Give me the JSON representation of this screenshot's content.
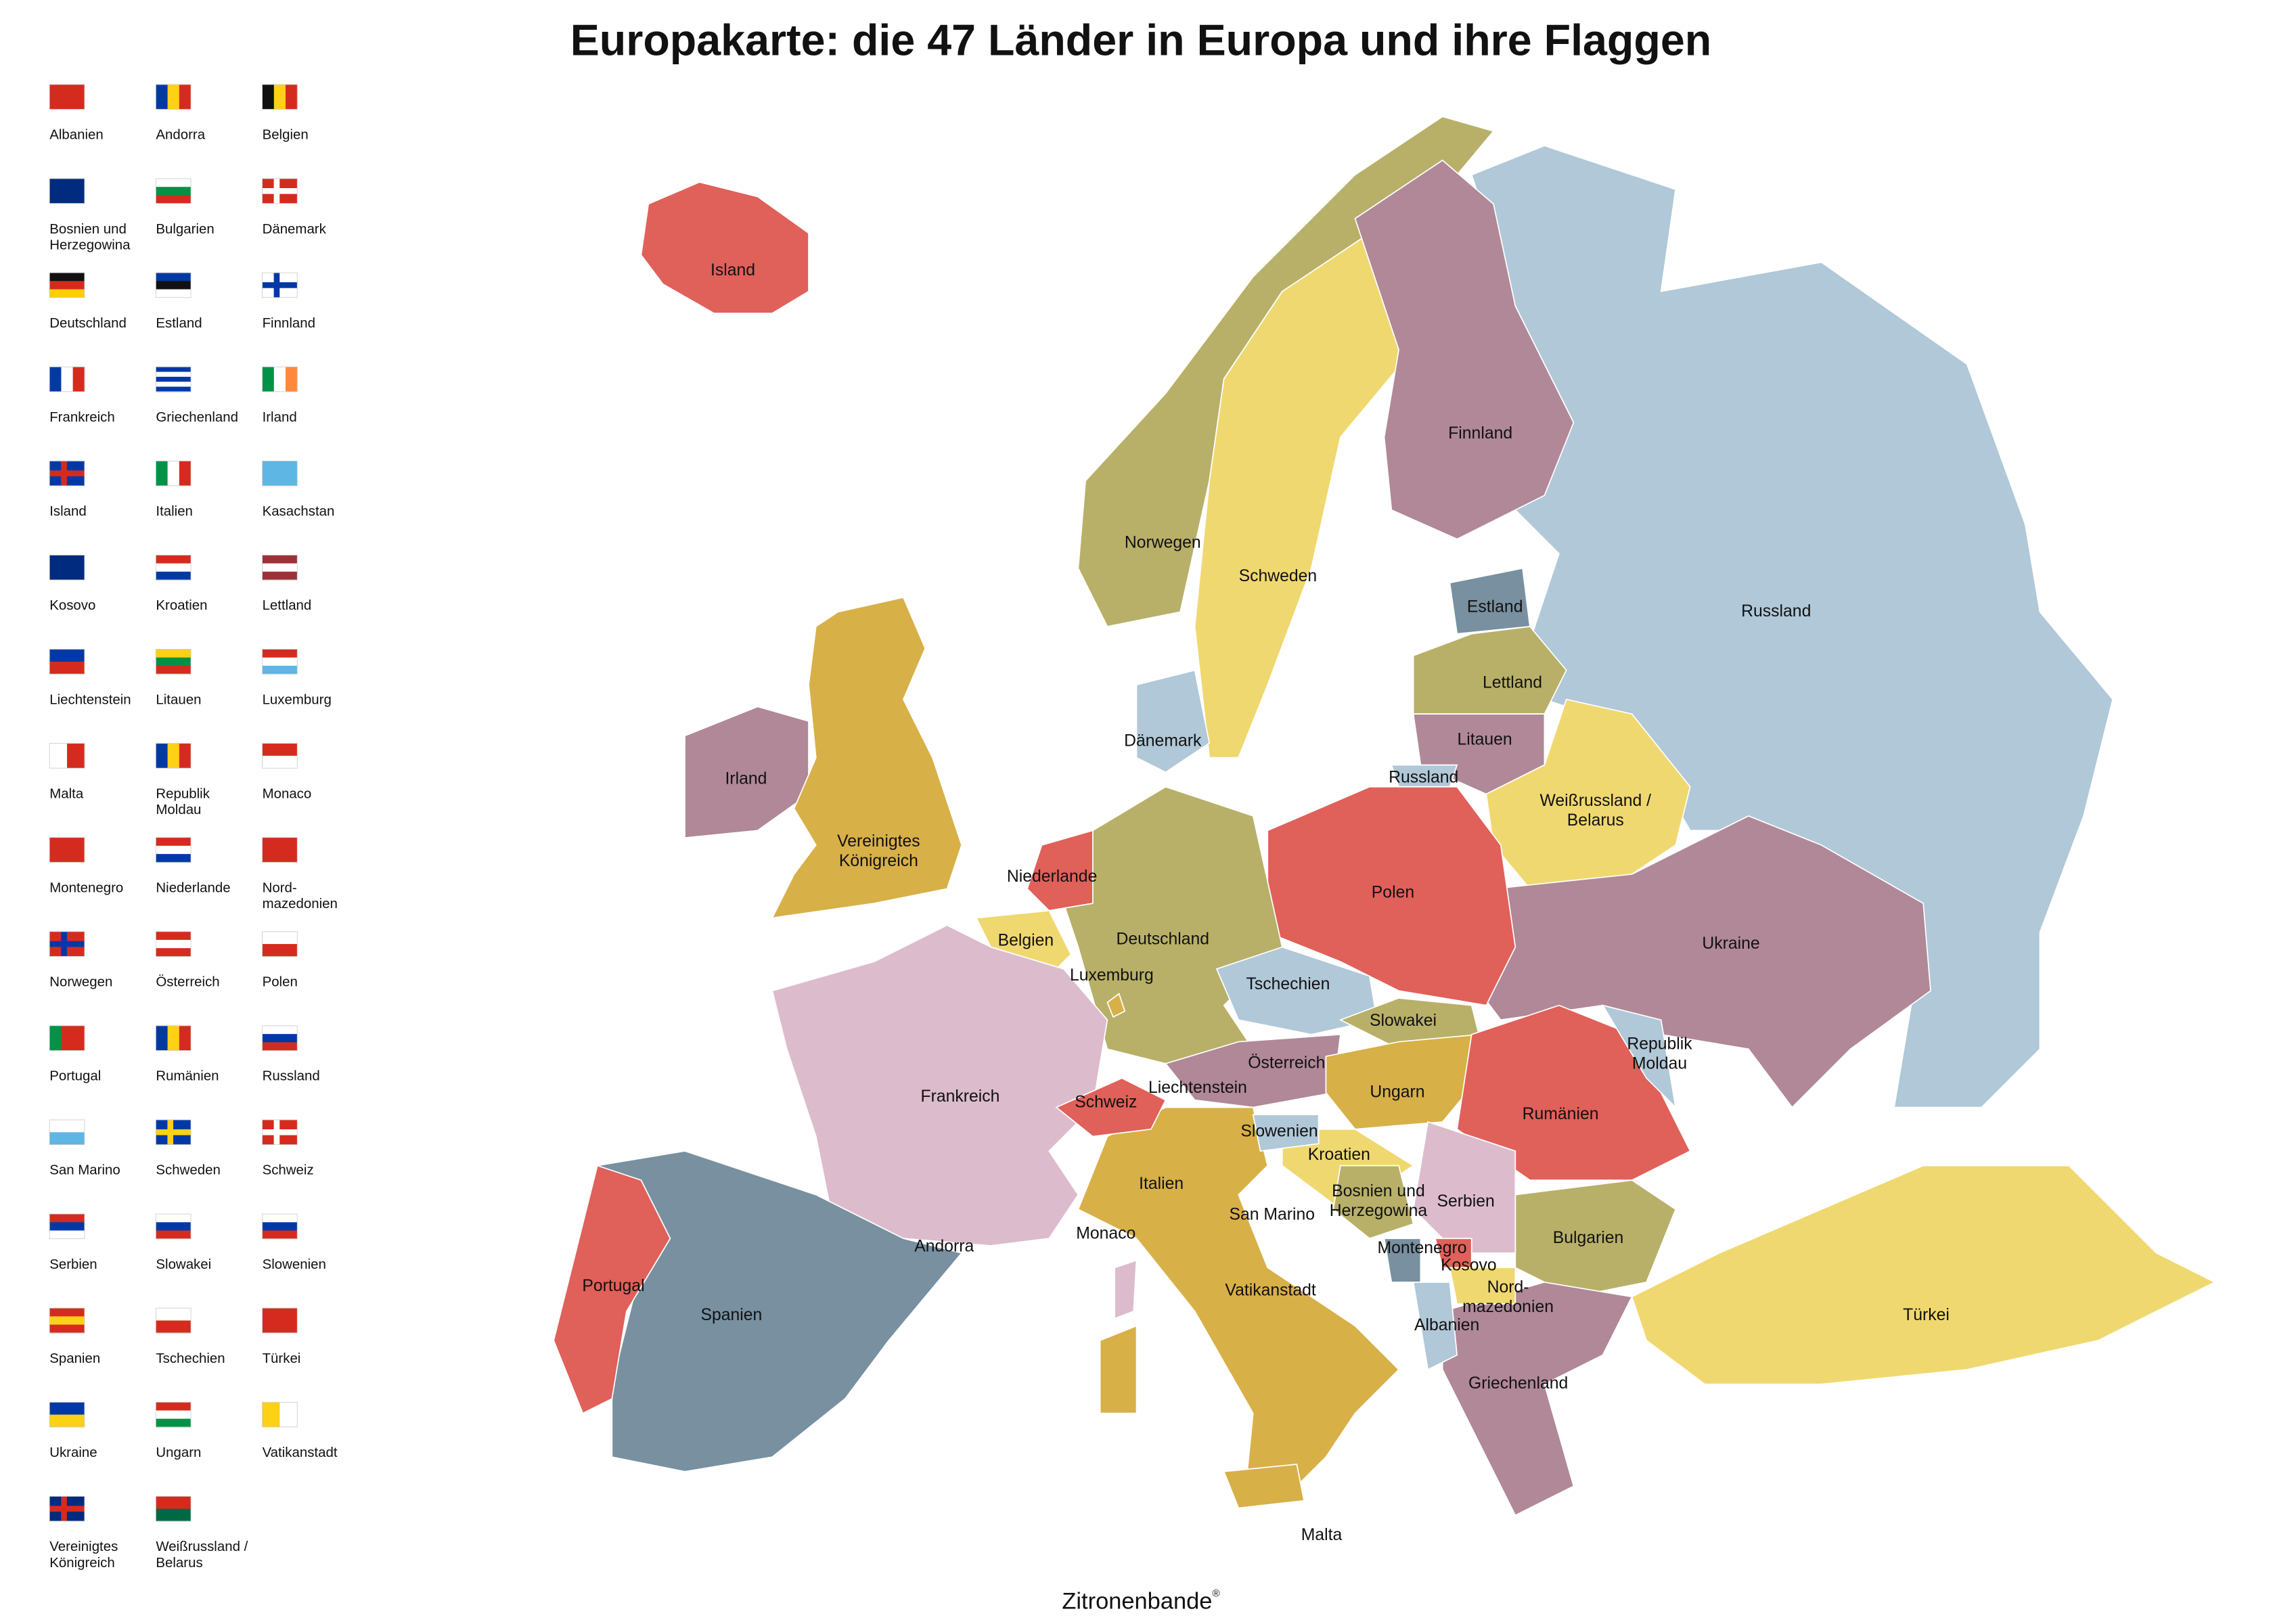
{
  "title": "Europakarte: die 47 Länder in Europa und ihre Flaggen",
  "legend": [
    [
      "Albanien"
    ],
    [
      "Andorra"
    ],
    [
      "Belgien"
    ],
    [
      "Bosnien und",
      "Herzegowina"
    ],
    [
      "Bulgarien"
    ],
    [
      "Dänemark"
    ],
    [
      "Deutschland"
    ],
    [
      "Estland"
    ],
    [
      "Finnland"
    ],
    [
      "Frankreich"
    ],
    [
      "Griechenland"
    ],
    [
      "Irland"
    ],
    [
      "Island"
    ],
    [
      "Italien"
    ],
    [
      "Kasachstan"
    ],
    [
      "Kosovo"
    ],
    [
      "Kroatien"
    ],
    [
      "Lettland"
    ],
    [
      "Liechtenstein"
    ],
    [
      "Litauen"
    ],
    [
      "Luxemburg"
    ],
    [
      "Malta"
    ],
    [
      "Republik",
      "Moldau"
    ],
    [
      "Monaco"
    ],
    [
      "Montenegro"
    ],
    [
      "Niederlande"
    ],
    [
      "Nord-",
      "mazedonien"
    ],
    [
      "Norwegen"
    ],
    [
      "Österreich"
    ],
    [
      "Polen"
    ],
    [
      "Portugal"
    ],
    [
      "Rumänien"
    ],
    [
      "Russland"
    ],
    [
      "San Marino"
    ],
    [
      "Schweden"
    ],
    [
      "Schweiz"
    ],
    [
      "Serbien"
    ],
    [
      "Slowakei"
    ],
    [
      "Slowenien"
    ],
    [
      "Spanien"
    ],
    [
      "Tschechien"
    ],
    [
      "Türkei"
    ],
    [
      "Ukraine"
    ],
    [
      "Ungarn"
    ],
    [
      "Vatikanstadt"
    ],
    [
      "Vereinigtes",
      "Königreich"
    ],
    [
      "Weißrussland /",
      "Belarus"
    ]
  ],
  "map": {
    "labels": [
      [
        "Island"
      ],
      [
        "Norwegen"
      ],
      [
        "Schweden"
      ],
      [
        "Finnland"
      ],
      [
        "Russland"
      ],
      [
        "Estland"
      ],
      [
        "Lettland"
      ],
      [
        "Litauen"
      ],
      [
        "Russland"
      ],
      [
        "Weißrussland /",
        "Belarus"
      ],
      [
        "Dänemark"
      ],
      [
        "Irland"
      ],
      [
        "Vereinigtes",
        "Königreich"
      ],
      [
        "Niederlande"
      ],
      [
        "Polen"
      ],
      [
        "Deutschland"
      ],
      [
        "Belgien"
      ],
      [
        "Ukraine"
      ],
      [
        "Luxemburg"
      ],
      [
        "Tschechien"
      ],
      [
        "Slowakei"
      ],
      [
        "Republik",
        "Moldau"
      ],
      [
        "Österreich"
      ],
      [
        "Liechtenstein"
      ],
      [
        "Ungarn"
      ],
      [
        "Frankreich"
      ],
      [
        "Schweiz"
      ],
      [
        "Rumänien"
      ],
      [
        "Slowenien"
      ],
      [
        "Kroatien"
      ],
      [
        "Italien"
      ],
      [
        "Bosnien und",
        "Herzegowina"
      ],
      [
        "Serbien"
      ],
      [
        "San Marino"
      ],
      [
        "Monaco"
      ],
      [
        "Bulgarien"
      ],
      [
        "Andorra"
      ],
      [
        "Montenegro"
      ],
      [
        "Kosovo"
      ],
      [
        "Portugal"
      ],
      [
        "Nord-",
        "mazedonien"
      ],
      [
        "Vatikanstadt"
      ],
      [
        "Spanien"
      ],
      [
        "Türkei"
      ],
      [
        "Albanien"
      ],
      [
        "Griechenland"
      ],
      [
        "Malta"
      ]
    ]
  },
  "footer": {
    "brand": "Zitronenbande",
    "mark": "®"
  }
}
